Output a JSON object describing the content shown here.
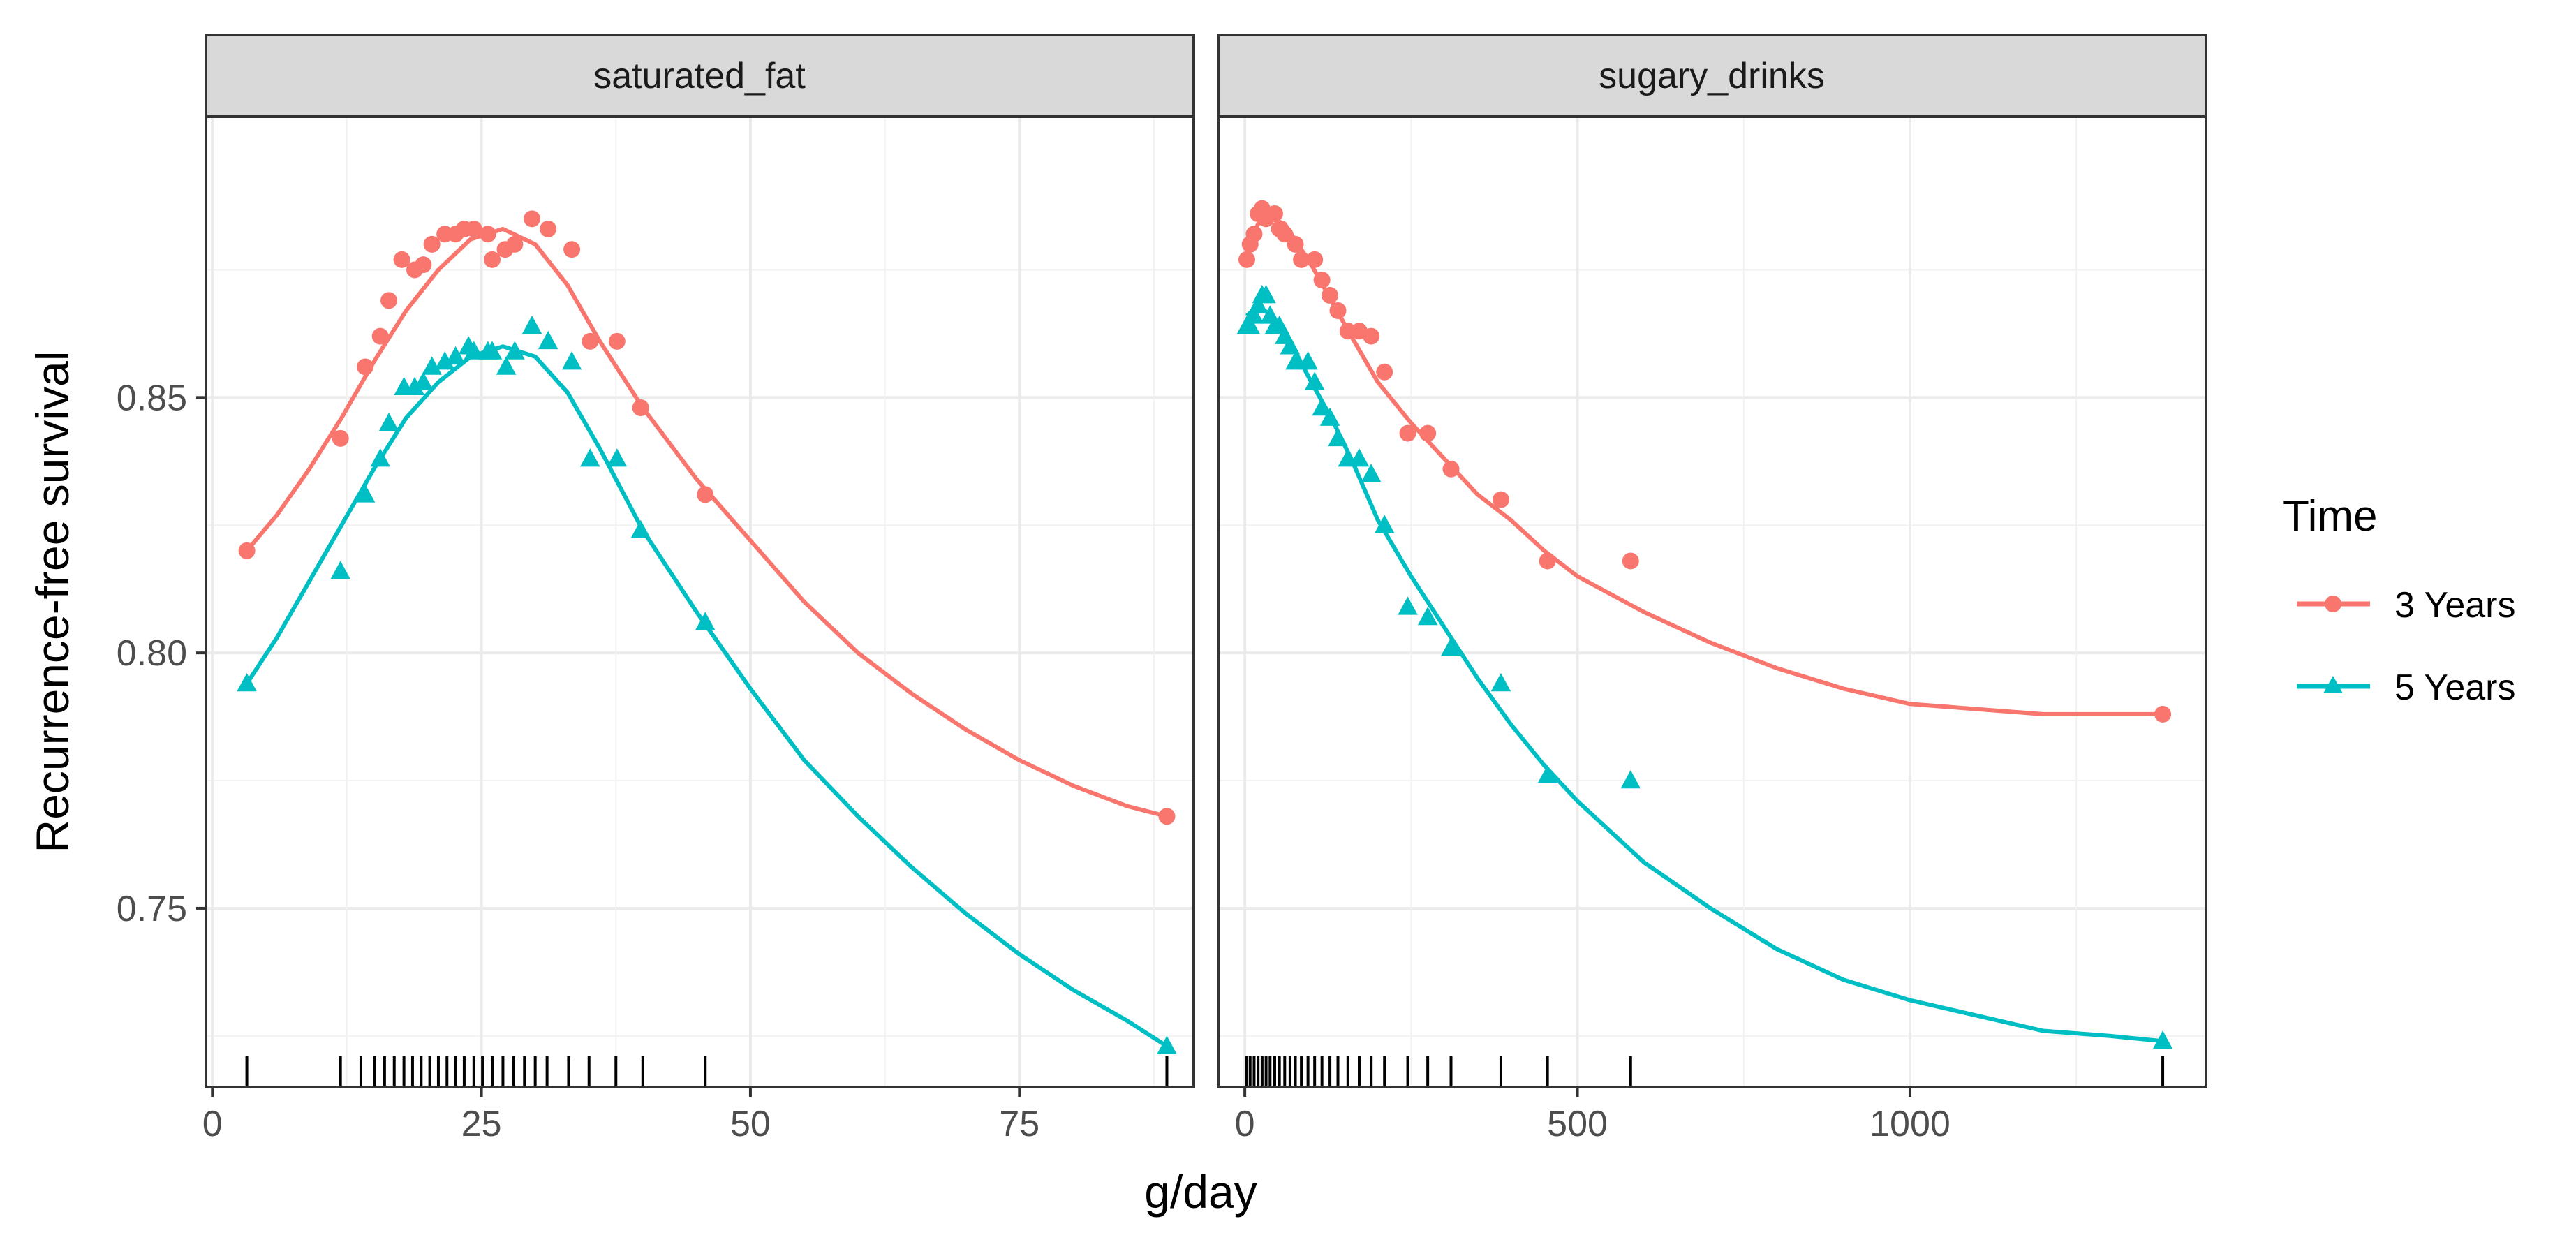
{
  "chart_data": {
    "type": "line",
    "xlabel": "g/day",
    "ylabel": "Recurrence-free survival",
    "ylim": [
      0.715,
      0.905
    ],
    "yticks": [
      0.75,
      0.8,
      0.85
    ],
    "ytick_labels": [
      "0.75",
      "0.80",
      "0.85"
    ],
    "legend": {
      "title": "Time",
      "position": "right",
      "entries": [
        {
          "label": "3 Years",
          "color": "#F8766D",
          "shape": "circle"
        },
        {
          "label": "5 Years",
          "color": "#00BFC4",
          "shape": "triangle"
        }
      ]
    },
    "panels": [
      {
        "strip": "saturated_fat",
        "xlim": [
          -0.6,
          91.2
        ],
        "xticks": [
          0,
          25,
          50,
          75
        ],
        "xtick_labels": [
          "0",
          "25",
          "50",
          "75"
        ],
        "rug": [
          3.2,
          11.9,
          13.8,
          15.1,
          16.0,
          16.9,
          17.8,
          18.6,
          19.4,
          20.2,
          21.0,
          21.8,
          22.6,
          23.4,
          24.3,
          25.1,
          26.0,
          27.0,
          28.0,
          29.0,
          30.0,
          31.1,
          33.1,
          35.0,
          37.5,
          40.0,
          45.8,
          88.7
        ],
        "series": [
          {
            "name": "3 Years",
            "color": "#F8766D",
            "shape": "circle",
            "points": [
              [
                3.2,
                0.82
              ],
              [
                11.9,
                0.842
              ],
              [
                14.2,
                0.856
              ],
              [
                15.6,
                0.862
              ],
              [
                16.4,
                0.869
              ],
              [
                17.6,
                0.877
              ],
              [
                18.8,
                0.875
              ],
              [
                19.6,
                0.876
              ],
              [
                20.4,
                0.88
              ],
              [
                21.6,
                0.882
              ],
              [
                22.6,
                0.882
              ],
              [
                23.4,
                0.883
              ],
              [
                24.3,
                0.883
              ],
              [
                25.6,
                0.882
              ],
              [
                26.0,
                0.877
              ],
              [
                27.2,
                0.879
              ],
              [
                28.1,
                0.88
              ],
              [
                29.7,
                0.885
              ],
              [
                31.2,
                0.883
              ],
              [
                33.4,
                0.879
              ],
              [
                35.1,
                0.861
              ],
              [
                37.6,
                0.861
              ],
              [
                39.8,
                0.848
              ],
              [
                45.8,
                0.831
              ],
              [
                88.7,
                0.768
              ]
            ],
            "smooth": [
              [
                3.2,
                0.82
              ],
              [
                6,
                0.827
              ],
              [
                9,
                0.836
              ],
              [
                12,
                0.846
              ],
              [
                15,
                0.857
              ],
              [
                18,
                0.867
              ],
              [
                21,
                0.875
              ],
              [
                24,
                0.881
              ],
              [
                27,
                0.883
              ],
              [
                30,
                0.88
              ],
              [
                33,
                0.872
              ],
              [
                36,
                0.861
              ],
              [
                40,
                0.848
              ],
              [
                45,
                0.834
              ],
              [
                50,
                0.822
              ],
              [
                55,
                0.81
              ],
              [
                60,
                0.8
              ],
              [
                65,
                0.792
              ],
              [
                70,
                0.785
              ],
              [
                75,
                0.779
              ],
              [
                80,
                0.774
              ],
              [
                85,
                0.77
              ],
              [
                88.7,
                0.768
              ]
            ]
          },
          {
            "name": "5 Years",
            "color": "#00BFC4",
            "shape": "triangle",
            "points": [
              [
                3.2,
                0.794
              ],
              [
                11.9,
                0.816
              ],
              [
                14.2,
                0.831
              ],
              [
                15.6,
                0.838
              ],
              [
                16.4,
                0.845
              ],
              [
                17.8,
                0.852
              ],
              [
                18.8,
                0.852
              ],
              [
                19.6,
                0.853
              ],
              [
                20.4,
                0.856
              ],
              [
                21.6,
                0.857
              ],
              [
                22.6,
                0.858
              ],
              [
                23.8,
                0.86
              ],
              [
                24.3,
                0.859
              ],
              [
                25.6,
                0.859
              ],
              [
                26.0,
                0.859
              ],
              [
                27.3,
                0.856
              ],
              [
                28.1,
                0.859
              ],
              [
                29.7,
                0.864
              ],
              [
                31.2,
                0.861
              ],
              [
                33.4,
                0.857
              ],
              [
                35.1,
                0.838
              ],
              [
                37.6,
                0.838
              ],
              [
                39.8,
                0.824
              ],
              [
                45.8,
                0.806
              ],
              [
                88.7,
                0.723
              ]
            ],
            "smooth": [
              [
                3.2,
                0.794
              ],
              [
                6,
                0.803
              ],
              [
                9,
                0.814
              ],
              [
                12,
                0.825
              ],
              [
                15,
                0.836
              ],
              [
                18,
                0.846
              ],
              [
                21,
                0.853
              ],
              [
                24,
                0.858
              ],
              [
                27,
                0.86
              ],
              [
                30,
                0.858
              ],
              [
                33,
                0.851
              ],
              [
                36,
                0.84
              ],
              [
                40,
                0.824
              ],
              [
                45,
                0.808
              ],
              [
                50,
                0.793
              ],
              [
                55,
                0.779
              ],
              [
                60,
                0.768
              ],
              [
                65,
                0.758
              ],
              [
                70,
                0.749
              ],
              [
                75,
                0.741
              ],
              [
                80,
                0.734
              ],
              [
                85,
                0.728
              ],
              [
                88.7,
                0.723
              ]
            ]
          }
        ]
      },
      {
        "strip": "sugary_drinks",
        "xlim": [
          -40,
          1445
        ],
        "xticks": [
          0,
          500,
          1000
        ],
        "xtick_labels": [
          "0",
          "500",
          "1000"
        ],
        "rug": [
          3,
          8,
          14,
          20,
          26,
          32,
          38,
          45,
          52,
          60,
          68,
          76,
          85,
          95,
          105,
          116,
          128,
          140,
          155,
          172,
          190,
          210,
          245,
          275,
          310,
          385,
          455,
          580,
          1380
        ],
        "series": [
          {
            "name": "3 Years",
            "color": "#F8766D",
            "shape": "circle",
            "points": [
              [
                3,
                0.877
              ],
              [
                8,
                0.88
              ],
              [
                14,
                0.882
              ],
              [
                20,
                0.886
              ],
              [
                26,
                0.887
              ],
              [
                32,
                0.885
              ],
              [
                45,
                0.886
              ],
              [
                52,
                0.883
              ],
              [
                60,
                0.882
              ],
              [
                76,
                0.88
              ],
              [
                85,
                0.877
              ],
              [
                105,
                0.877
              ],
              [
                116,
                0.873
              ],
              [
                128,
                0.87
              ],
              [
                140,
                0.867
              ],
              [
                155,
                0.863
              ],
              [
                172,
                0.863
              ],
              [
                190,
                0.862
              ],
              [
                210,
                0.855
              ],
              [
                245,
                0.843
              ],
              [
                275,
                0.843
              ],
              [
                310,
                0.836
              ],
              [
                385,
                0.83
              ],
              [
                455,
                0.818
              ],
              [
                580,
                0.818
              ],
              [
                1380,
                0.788
              ]
            ],
            "smooth": [
              [
                3,
                0.879
              ],
              [
                20,
                0.884
              ],
              [
                40,
                0.885
              ],
              [
                60,
                0.884
              ],
              [
                80,
                0.88
              ],
              [
                100,
                0.876
              ],
              [
                130,
                0.869
              ],
              [
                160,
                0.862
              ],
              [
                200,
                0.853
              ],
              [
                250,
                0.845
              ],
              [
                300,
                0.838
              ],
              [
                350,
                0.831
              ],
              [
                400,
                0.826
              ],
              [
                450,
                0.82
              ],
              [
                500,
                0.815
              ],
              [
                600,
                0.808
              ],
              [
                700,
                0.802
              ],
              [
                800,
                0.797
              ],
              [
                900,
                0.793
              ],
              [
                1000,
                0.79
              ],
              [
                1100,
                0.789
              ],
              [
                1200,
                0.788
              ],
              [
                1300,
                0.788
              ],
              [
                1380,
                0.788
              ]
            ]
          },
          {
            "name": "5 Years",
            "color": "#00BFC4",
            "shape": "triangle",
            "points": [
              [
                3,
                0.864
              ],
              [
                8,
                0.864
              ],
              [
                14,
                0.866
              ],
              [
                20,
                0.868
              ],
              [
                26,
                0.87
              ],
              [
                32,
                0.87
              ],
              [
                38,
                0.866
              ],
              [
                45,
                0.864
              ],
              [
                52,
                0.864
              ],
              [
                60,
                0.862
              ],
              [
                68,
                0.86
              ],
              [
                76,
                0.857
              ],
              [
                95,
                0.857
              ],
              [
                105,
                0.853
              ],
              [
                116,
                0.848
              ],
              [
                128,
                0.846
              ],
              [
                140,
                0.842
              ],
              [
                155,
                0.838
              ],
              [
                172,
                0.838
              ],
              [
                190,
                0.835
              ],
              [
                210,
                0.825
              ],
              [
                245,
                0.809
              ],
              [
                275,
                0.807
              ],
              [
                310,
                0.801
              ],
              [
                385,
                0.794
              ],
              [
                455,
                0.776
              ],
              [
                580,
                0.775
              ],
              [
                1380,
                0.724
              ]
            ],
            "smooth": [
              [
                3,
                0.866
              ],
              [
                20,
                0.868
              ],
              [
                40,
                0.866
              ],
              [
                60,
                0.862
              ],
              [
                80,
                0.858
              ],
              [
                100,
                0.853
              ],
              [
                130,
                0.846
              ],
              [
                160,
                0.838
              ],
              [
                200,
                0.826
              ],
              [
                250,
                0.815
              ],
              [
                300,
                0.805
              ],
              [
                350,
                0.795
              ],
              [
                400,
                0.786
              ],
              [
                450,
                0.778
              ],
              [
                500,
                0.771
              ],
              [
                600,
                0.759
              ],
              [
                700,
                0.75
              ],
              [
                800,
                0.742
              ],
              [
                900,
                0.736
              ],
              [
                1000,
                0.732
              ],
              [
                1100,
                0.729
              ],
              [
                1200,
                0.726
              ],
              [
                1300,
                0.725
              ],
              [
                1380,
                0.724
              ]
            ]
          }
        ]
      }
    ]
  }
}
